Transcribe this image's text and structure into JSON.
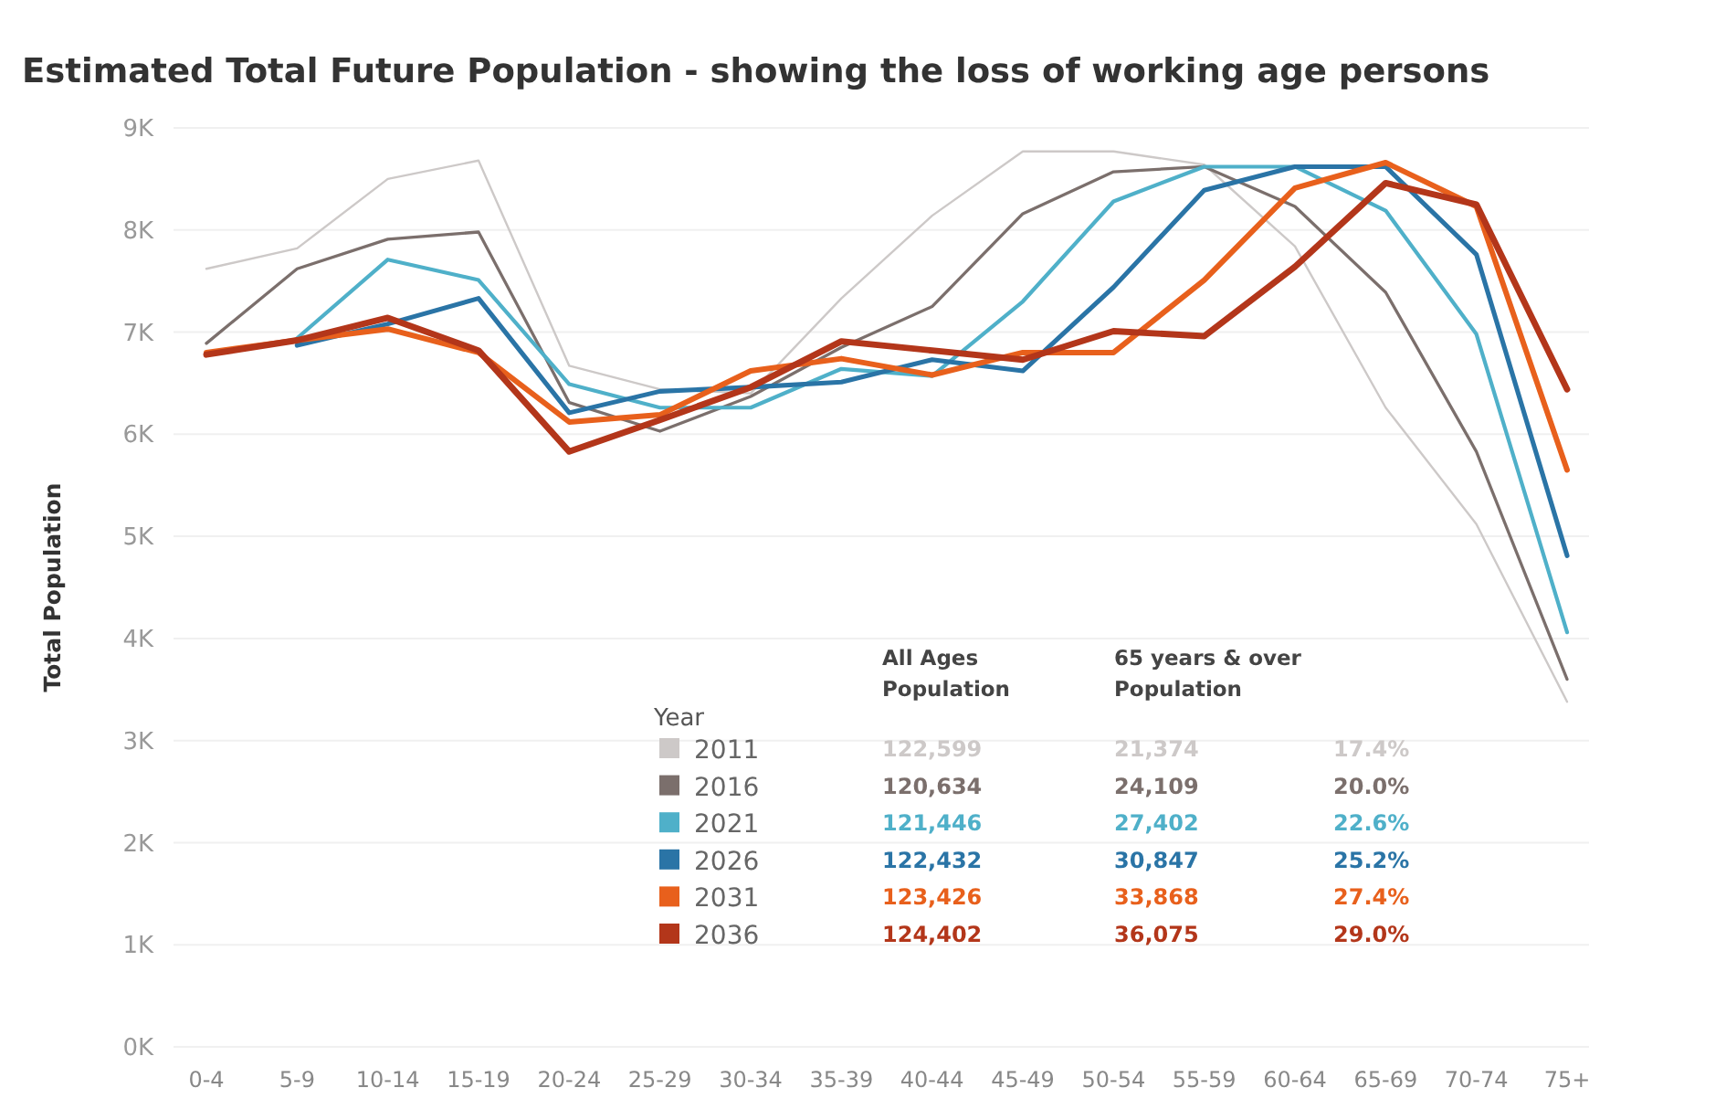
{
  "chart_data": {
    "type": "line",
    "title": "Estimated Total Future Population - showing the loss of working age persons",
    "ylabel": "Total Population",
    "categories": [
      "0-4",
      "5-9",
      "10-14",
      "15-19",
      "20-24",
      "25-29",
      "30-34",
      "35-39",
      "40-44",
      "45-49",
      "50-54",
      "55-59",
      "60-64",
      "65-69",
      "70-74",
      "75+"
    ],
    "ylim": [
      0,
      9000
    ],
    "yticks": [
      {
        "value": 0,
        "label": "0K"
      },
      {
        "value": 1000,
        "label": "1K"
      },
      {
        "value": 2000,
        "label": "2K"
      },
      {
        "value": 3000,
        "label": "3K"
      },
      {
        "value": 4000,
        "label": "4K"
      },
      {
        "value": 5000,
        "label": "5K"
      },
      {
        "value": 6000,
        "label": "6K"
      },
      {
        "value": 7000,
        "label": "7K"
      },
      {
        "value": 8000,
        "label": "8K"
      },
      {
        "value": 9000,
        "label": "9K"
      }
    ],
    "grid": "y",
    "legend": "bottom",
    "legend_title": "Year",
    "marker": "none",
    "line_style": "solid",
    "series": [
      {
        "name": "2011",
        "color": "#cdc9c8",
        "values": [
          7620,
          7820,
          8500,
          8680,
          6670,
          6440,
          6400,
          7330,
          8140,
          8770,
          8770,
          8640,
          7840,
          6260,
          5120,
          3380
        ]
      },
      {
        "name": "2016",
        "color": "#7b6f6c",
        "values": [
          6890,
          7620,
          7910,
          7980,
          6310,
          6030,
          6370,
          6850,
          7250,
          8160,
          8570,
          8620,
          8230,
          7390,
          5830,
          3600
        ]
      },
      {
        "name": "2021",
        "color": "#4fb0c9",
        "values": [
          null,
          6940,
          7710,
          7510,
          6490,
          6260,
          6260,
          6640,
          6570,
          7300,
          8280,
          8620,
          8620,
          8190,
          6980,
          4060
        ]
      },
      {
        "name": "2026",
        "color": "#2a74a6",
        "values": [
          null,
          6870,
          7080,
          7330,
          6210,
          6420,
          6460,
          6510,
          6730,
          6620,
          7440,
          8390,
          8620,
          8620,
          7760,
          4810
        ]
      },
      {
        "name": "2031",
        "color": "#e8601c",
        "values": [
          6800,
          6920,
          7030,
          6800,
          6120,
          6190,
          6620,
          6740,
          6580,
          6800,
          6800,
          7510,
          8410,
          8660,
          8230,
          5650
        ]
      },
      {
        "name": "2036",
        "color": "#b3361a",
        "values": [
          6780,
          6920,
          7140,
          6820,
          5830,
          6140,
          6460,
          6910,
          6820,
          6730,
          7010,
          6960,
          7640,
          8460,
          8250,
          6440
        ]
      }
    ],
    "annotations": [
      "All Ages Population",
      "65 years & over Population",
      "122,599",
      "21,374",
      "17.4%",
      "120,634",
      "24,109",
      "20.0%",
      "121,446",
      "27,402",
      "22.6%",
      "122,432",
      "30,847",
      "25.2%",
      "123,426",
      "33,868",
      "27.4%",
      "124,402",
      "36,075",
      "29.0%"
    ]
  }
}
